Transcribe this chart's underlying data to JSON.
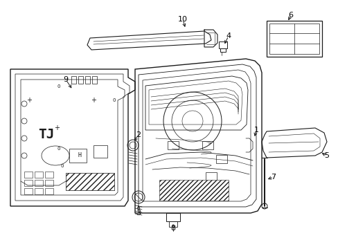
{
  "background_color": "#ffffff",
  "line_color": "#1a1a1a",
  "label_color": "#000000",
  "figsize": [
    4.89,
    3.6
  ],
  "dpi": 100,
  "lw_main": 1.0,
  "lw_thin": 0.5,
  "lw_thick": 1.2
}
